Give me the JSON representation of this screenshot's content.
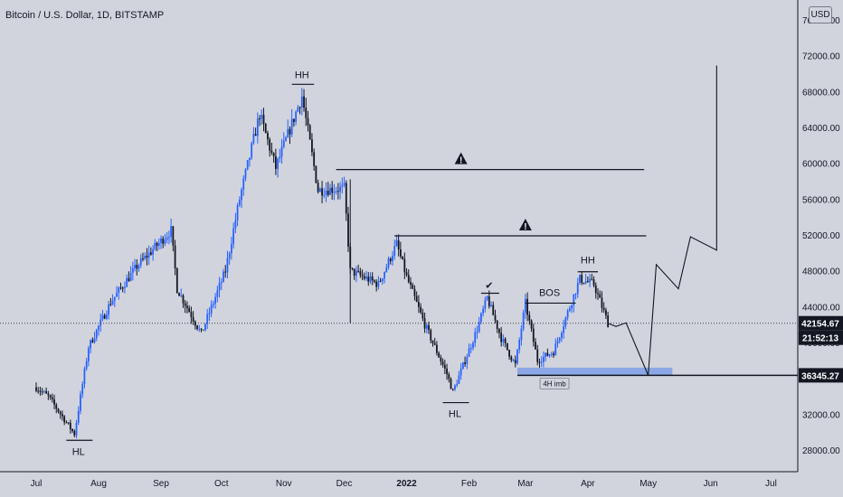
{
  "title": "Bitcoin / U.S. Dollar, 1D, BITSTAMP",
  "currency": "USD",
  "colors": {
    "background": "#d1d4dc",
    "up_candle": "#2962ff",
    "down_candle": "#131722",
    "drawing": "#131722",
    "imbalance_zone": "#7f9fe8",
    "price_label_bg": "#131722"
  },
  "chart_data": {
    "type": "candlestick",
    "symbol": "BTCUSD",
    "interval": "1D",
    "exchange": "BITSTAMP",
    "x_tick_labels": [
      "Jul",
      "Aug",
      "Sep",
      "Oct",
      "Nov",
      "Dec",
      "2022",
      "Feb",
      "Mar",
      "Apr",
      "May",
      "Jun",
      "Jul"
    ],
    "y_tick_labels": [
      "28000.00",
      "32000.00",
      "36000.00",
      "40000.00",
      "44000.00",
      "48000.00",
      "52000.00",
      "56000.00",
      "60000.00",
      "64000.00",
      "68000.00",
      "72000.00",
      "76000.00"
    ],
    "y_range": [
      25800,
      77400
    ],
    "grid": false,
    "price_path_waypoints": [
      {
        "date": "2021-07-01",
        "price": 35000
      },
      {
        "date": "2021-07-07",
        "price": 34000
      },
      {
        "date": "2021-07-20",
        "price": 29800
      },
      {
        "date": "2021-07-27",
        "price": 39500
      },
      {
        "date": "2021-08-07",
        "price": 44500
      },
      {
        "date": "2021-08-20",
        "price": 48500
      },
      {
        "date": "2021-09-06",
        "price": 52500
      },
      {
        "date": "2021-09-09",
        "price": 46000
      },
      {
        "date": "2021-09-21",
        "price": 41000
      },
      {
        "date": "2021-10-03",
        "price": 48000
      },
      {
        "date": "2021-10-10",
        "price": 56000
      },
      {
        "date": "2021-10-20",
        "price": 65500
      },
      {
        "date": "2021-10-28",
        "price": 59500
      },
      {
        "date": "2021-11-10",
        "price": 67500
      },
      {
        "date": "2021-11-18",
        "price": 57000
      },
      {
        "date": "2021-12-01",
        "price": 57200
      },
      {
        "date": "2021-12-04",
        "price": 48000
      },
      {
        "date": "2021-12-18",
        "price": 46500
      },
      {
        "date": "2021-12-27",
        "price": 51000
      },
      {
        "date": "2022-01-01",
        "price": 47300
      },
      {
        "date": "2022-01-10",
        "price": 42000
      },
      {
        "date": "2022-01-21",
        "price": 36500
      },
      {
        "date": "2022-01-24",
        "price": 34500
      },
      {
        "date": "2022-02-05",
        "price": 41500
      },
      {
        "date": "2022-02-10",
        "price": 45000
      },
      {
        "date": "2022-02-17",
        "price": 40500
      },
      {
        "date": "2022-02-24",
        "price": 37500
      },
      {
        "date": "2022-03-01",
        "price": 44400
      },
      {
        "date": "2022-03-07",
        "price": 38000
      },
      {
        "date": "2022-03-15",
        "price": 39000
      },
      {
        "date": "2022-03-28",
        "price": 47100
      },
      {
        "date": "2022-04-04",
        "price": 46500
      },
      {
        "date": "2022-04-11",
        "price": 42154.67
      }
    ],
    "current_price": "42154.67",
    "countdown": "21:52:13",
    "marked_level": "36345.27",
    "annotations": {
      "peak_label": "HH",
      "low_label_jul": "HL",
      "low_label_jan": "HL",
      "peak_label_apr": "HH",
      "bos_label": "BOS",
      "imbalance_label": "4H imb",
      "resistance_levels": [
        59300,
        51900
      ],
      "warning_glyph": "!",
      "check_glyph": "✔"
    },
    "projected_path": [
      {
        "date": "2022-04-11",
        "price": 42154.67
      },
      {
        "date": "2022-04-15",
        "price": 41800
      },
      {
        "date": "2022-04-20",
        "price": 42200
      },
      {
        "date": "2022-04-26",
        "price": 39000
      },
      {
        "date": "2022-05-01",
        "price": 36345.27
      },
      {
        "date": "2022-05-05",
        "price": 48700
      },
      {
        "date": "2022-05-16",
        "price": 46000
      },
      {
        "date": "2022-05-22",
        "price": 51800
      },
      {
        "date": "2022-06-04",
        "price": 50300
      },
      {
        "date": "2022-06-04",
        "price": 70900
      }
    ]
  }
}
